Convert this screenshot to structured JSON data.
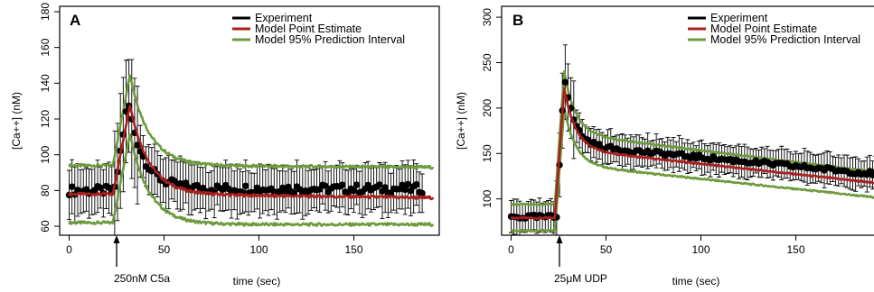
{
  "chart_data": [
    {
      "type": "line",
      "panel_label": "A",
      "xlabel": "time (sec)",
      "ylabel": "[Ca++] (nM)",
      "xlim": [
        -5,
        195
      ],
      "ylim": [
        55,
        183
      ],
      "xticks": [
        0,
        50,
        100,
        150
      ],
      "yticks": [
        60,
        80,
        100,
        120,
        140,
        160,
        180
      ],
      "stimulus": {
        "label": "250nM C5a",
        "time": 23
      },
      "legend_position": "top-right",
      "legend": [
        {
          "label": "Experiment",
          "color": "#000000"
        },
        {
          "label": "Model Point Estimate",
          "color": "#aa1f1f"
        },
        {
          "label": "Model 95% Prediction Interval",
          "color": "#6d9a3c"
        }
      ],
      "series": [
        {
          "name": "Experiment",
          "kind": "points_with_error_bars",
          "model": {
            "t0": 24,
            "baseline": 80,
            "peak": 130,
            "t_peak": 31,
            "decay_tau": 8,
            "plateau": 81
          },
          "error_bar_halfwidth": 14,
          "time_range": [
            0,
            187
          ],
          "sample_step": 1.5
        },
        {
          "name": "Model Point Estimate",
          "model": {
            "t0": 23,
            "baseline": 78,
            "peak": 128,
            "t_peak": 32,
            "decay_tau": 10,
            "plateau": 78,
            "end": 76
          }
        },
        {
          "name": "Model 95% Prediction Interval (upper)",
          "model": {
            "t0": 23,
            "baseline": 94,
            "peak": 145,
            "t_peak": 32,
            "decay_tau": 10,
            "plateau": 94,
            "end": 93
          }
        },
        {
          "name": "Model 95% Prediction Interval (lower)",
          "model": {
            "t0": 23,
            "baseline": 62,
            "peak": 112,
            "t_peak": 32,
            "decay_tau": 10,
            "plateau": 61,
            "end": 61
          }
        }
      ]
    },
    {
      "type": "line",
      "panel_label": "B",
      "xlabel": "time (sec)",
      "ylabel": "[Ca++] (nM)",
      "xlim": [
        -5,
        195
      ],
      "ylim": [
        60,
        312
      ],
      "xticks": [
        0,
        50,
        100,
        150
      ],
      "yticks": [
        100,
        150,
        200,
        250,
        300
      ],
      "stimulus": {
        "label": "25μM UDP",
        "time": 23
      },
      "legend_position": "top-right",
      "legend": [
        {
          "label": "Experiment",
          "color": "#000000"
        },
        {
          "label": "Model Point Estimate",
          "color": "#aa1f1f"
        },
        {
          "label": "Model 95% Prediction Interval",
          "color": "#6d9a3c"
        }
      ],
      "series": [
        {
          "name": "Experiment",
          "kind": "points_with_error_bars",
          "model": {
            "t0": 24,
            "baseline": 80,
            "peak": 238,
            "t_peak": 28,
            "decay_tau": 5,
            "plateau": 160,
            "end": 128
          },
          "error_bar_halfwidth": 18,
          "time_range": [
            0,
            192
          ],
          "sample_step": 1.5
        },
        {
          "name": "Model Point Estimate",
          "model": {
            "t0": 23,
            "baseline": 79,
            "peak": 222,
            "t_peak": 28,
            "decay_tau": 6,
            "plateau": 155,
            "end": 118
          }
        },
        {
          "name": "Model 95% Prediction Interval (upper)",
          "model": {
            "t0": 23,
            "baseline": 94,
            "peak": 240,
            "t_peak": 28,
            "decay_tau": 6,
            "plateau": 172,
            "end": 130
          }
        },
        {
          "name": "Model 95% Prediction Interval (lower)",
          "model": {
            "t0": 23,
            "baseline": 65,
            "peak": 200,
            "t_peak": 28,
            "decay_tau": 6,
            "plateau": 138,
            "end": 102
          }
        }
      ]
    }
  ]
}
